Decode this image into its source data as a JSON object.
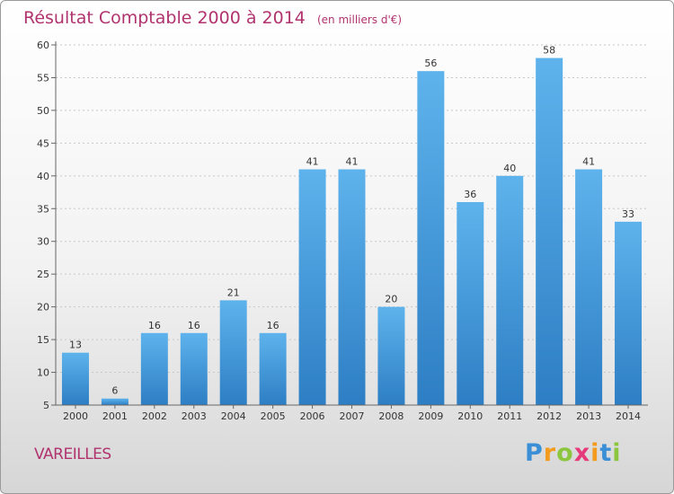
{
  "chart_data": {
    "type": "bar",
    "title": "Résultat Comptable 2000 à 2014",
    "subtitle": "(en milliers d'€)",
    "categories": [
      "2000",
      "2001",
      "2002",
      "2003",
      "2004",
      "2005",
      "2006",
      "2007",
      "2008",
      "2009",
      "2010",
      "2011",
      "2012",
      "2013",
      "2014"
    ],
    "values": [
      13,
      6,
      16,
      16,
      21,
      16,
      41,
      41,
      20,
      56,
      36,
      40,
      58,
      41,
      33
    ],
    "ylim": [
      5,
      60
    ],
    "yticks": [
      5,
      10,
      15,
      20,
      25,
      30,
      35,
      40,
      45,
      50,
      55,
      60
    ],
    "grid": true,
    "xlabel": "",
    "ylabel": ""
  },
  "commune": "VAREILLES",
  "brand": {
    "letters": [
      "P",
      "r",
      "o",
      "x",
      "i",
      "t",
      "i"
    ],
    "colors": [
      "#3b8fd6",
      "#f39b1e",
      "#8cc63f",
      "#e63b7a",
      "#f39b1e",
      "#3b8fd6",
      "#8cc63f"
    ]
  },
  "colors": {
    "bar_top": "#5eb3ec",
    "bar_bottom": "#2d7ec4",
    "title": "#b0336e"
  }
}
